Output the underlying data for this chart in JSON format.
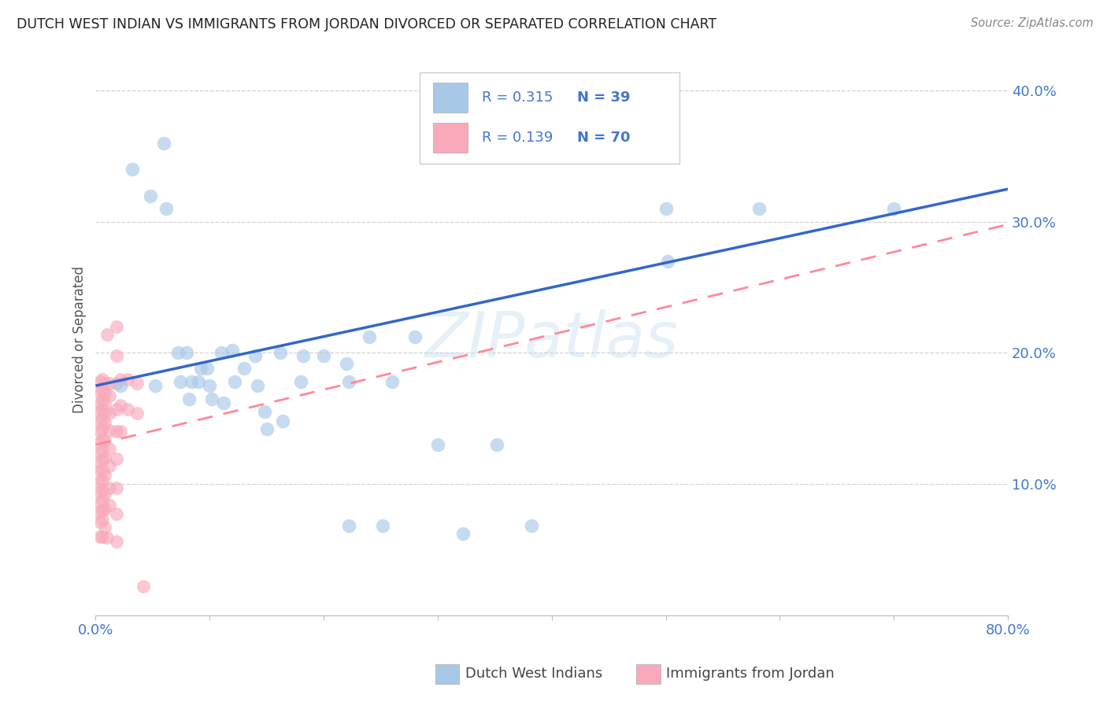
{
  "title": "DUTCH WEST INDIAN VS IMMIGRANTS FROM JORDAN DIVORCED OR SEPARATED CORRELATION CHART",
  "source": "Source: ZipAtlas.com",
  "ylabel": "Divorced or Separated",
  "xlim": [
    0,
    0.8
  ],
  "ylim": [
    0,
    0.42
  ],
  "yticks": [
    0.0,
    0.1,
    0.2,
    0.3,
    0.4
  ],
  "ytick_labels": [
    "",
    "10.0%",
    "20.0%",
    "30.0%",
    "40.0%"
  ],
  "xticks": [
    0.0,
    0.1,
    0.2,
    0.3,
    0.4,
    0.5,
    0.6,
    0.7,
    0.8
  ],
  "xtick_labels": [
    "0.0%",
    "",
    "",
    "",
    "",
    "",
    "",
    "",
    "80.0%"
  ],
  "legend_label1": "Dutch West Indians",
  "legend_label2": "Immigrants from Jordan",
  "blue_color": "#A8C8E8",
  "pink_color": "#F8AABB",
  "line_blue": "#3366CC",
  "line_pink": "#FF8899",
  "axis_color": "#4477CC",
  "watermark_color": "#B8D4EE",
  "watermark": "ZIPatlas",
  "blue_line_start": 0.175,
  "blue_line_end": 0.325,
  "pink_line_start": 0.13,
  "pink_line_end": 0.298,
  "blue_dots": [
    [
      0.022,
      0.175
    ],
    [
      0.032,
      0.34
    ],
    [
      0.048,
      0.32
    ],
    [
      0.052,
      0.175
    ],
    [
      0.06,
      0.36
    ],
    [
      0.062,
      0.31
    ],
    [
      0.072,
      0.2
    ],
    [
      0.074,
      0.178
    ],
    [
      0.08,
      0.2
    ],
    [
      0.082,
      0.165
    ],
    [
      0.084,
      0.178
    ],
    [
      0.09,
      0.178
    ],
    [
      0.092,
      0.188
    ],
    [
      0.098,
      0.188
    ],
    [
      0.1,
      0.175
    ],
    [
      0.102,
      0.165
    ],
    [
      0.11,
      0.2
    ],
    [
      0.112,
      0.162
    ],
    [
      0.12,
      0.202
    ],
    [
      0.122,
      0.178
    ],
    [
      0.13,
      0.188
    ],
    [
      0.14,
      0.198
    ],
    [
      0.142,
      0.175
    ],
    [
      0.162,
      0.2
    ],
    [
      0.164,
      0.148
    ],
    [
      0.18,
      0.178
    ],
    [
      0.182,
      0.198
    ],
    [
      0.2,
      0.198
    ],
    [
      0.22,
      0.192
    ],
    [
      0.222,
      0.178
    ],
    [
      0.24,
      0.212
    ],
    [
      0.26,
      0.178
    ],
    [
      0.28,
      0.212
    ],
    [
      0.3,
      0.13
    ],
    [
      0.352,
      0.13
    ],
    [
      0.5,
      0.31
    ],
    [
      0.502,
      0.27
    ],
    [
      0.582,
      0.31
    ],
    [
      0.7,
      0.31
    ],
    [
      0.222,
      0.068
    ],
    [
      0.252,
      0.068
    ],
    [
      0.322,
      0.062
    ],
    [
      0.382,
      0.068
    ],
    [
      0.148,
      0.155
    ],
    [
      0.15,
      0.142
    ]
  ],
  "pink_dots": [
    [
      0.004,
      0.178
    ],
    [
      0.004,
      0.17
    ],
    [
      0.004,
      0.162
    ],
    [
      0.004,
      0.155
    ],
    [
      0.004,
      0.148
    ],
    [
      0.004,
      0.14
    ],
    [
      0.004,
      0.132
    ],
    [
      0.004,
      0.124
    ],
    [
      0.004,
      0.117
    ],
    [
      0.004,
      0.11
    ],
    [
      0.004,
      0.102
    ],
    [
      0.004,
      0.094
    ],
    [
      0.004,
      0.086
    ],
    [
      0.004,
      0.079
    ],
    [
      0.004,
      0.071
    ],
    [
      0.004,
      0.06
    ],
    [
      0.006,
      0.18
    ],
    [
      0.006,
      0.172
    ],
    [
      0.006,
      0.164
    ],
    [
      0.006,
      0.157
    ],
    [
      0.006,
      0.15
    ],
    [
      0.006,
      0.142
    ],
    [
      0.006,
      0.134
    ],
    [
      0.006,
      0.126
    ],
    [
      0.006,
      0.119
    ],
    [
      0.006,
      0.111
    ],
    [
      0.006,
      0.103
    ],
    [
      0.006,
      0.096
    ],
    [
      0.006,
      0.088
    ],
    [
      0.006,
      0.08
    ],
    [
      0.006,
      0.073
    ],
    [
      0.006,
      0.06
    ],
    [
      0.008,
      0.177
    ],
    [
      0.008,
      0.169
    ],
    [
      0.008,
      0.161
    ],
    [
      0.008,
      0.154
    ],
    [
      0.008,
      0.146
    ],
    [
      0.008,
      0.133
    ],
    [
      0.008,
      0.12
    ],
    [
      0.008,
      0.107
    ],
    [
      0.008,
      0.093
    ],
    [
      0.008,
      0.081
    ],
    [
      0.008,
      0.067
    ],
    [
      0.012,
      0.177
    ],
    [
      0.012,
      0.167
    ],
    [
      0.012,
      0.154
    ],
    [
      0.012,
      0.141
    ],
    [
      0.012,
      0.127
    ],
    [
      0.012,
      0.114
    ],
    [
      0.012,
      0.097
    ],
    [
      0.012,
      0.084
    ],
    [
      0.018,
      0.22
    ],
    [
      0.018,
      0.198
    ],
    [
      0.018,
      0.177
    ],
    [
      0.018,
      0.157
    ],
    [
      0.018,
      0.14
    ],
    [
      0.018,
      0.119
    ],
    [
      0.018,
      0.097
    ],
    [
      0.018,
      0.077
    ],
    [
      0.018,
      0.056
    ],
    [
      0.022,
      0.18
    ],
    [
      0.022,
      0.16
    ],
    [
      0.022,
      0.14
    ],
    [
      0.028,
      0.18
    ],
    [
      0.028,
      0.157
    ],
    [
      0.036,
      0.177
    ],
    [
      0.036,
      0.154
    ],
    [
      0.042,
      0.022
    ],
    [
      0.01,
      0.214
    ],
    [
      0.01,
      0.059
    ]
  ]
}
